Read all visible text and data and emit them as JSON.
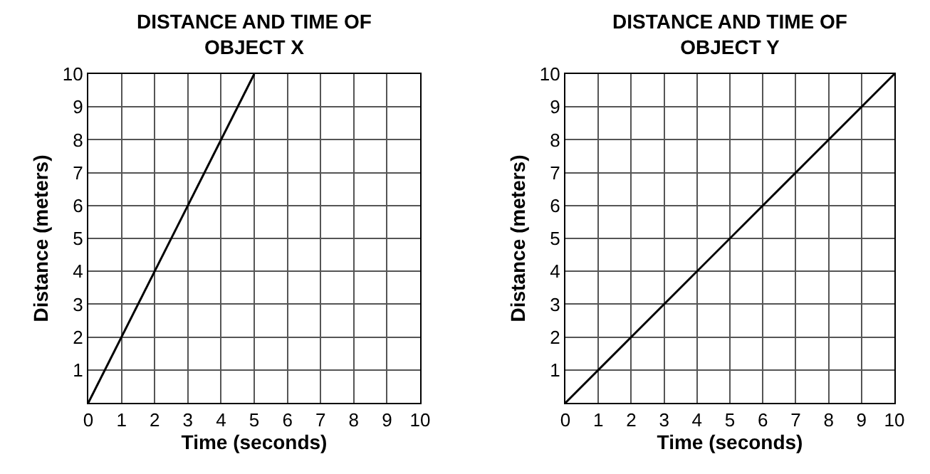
{
  "chart_data": [
    {
      "type": "line",
      "title": "DISTANCE AND TIME OF\nOBJECT X",
      "xlabel": "Time (seconds)",
      "ylabel": "Distance (meters)",
      "x": [
        0,
        5
      ],
      "series": [
        {
          "color": "#000000",
          "values": [
            0,
            10
          ]
        }
      ],
      "xlim": [
        0,
        10
      ],
      "ylim": [
        0,
        10
      ],
      "xticks": [
        0,
        1,
        2,
        3,
        4,
        5,
        6,
        7,
        8,
        9,
        10
      ],
      "yticks": [
        {
          "value": 0,
          "label": null
        },
        1,
        2,
        3,
        4,
        5,
        6,
        7,
        8,
        9,
        10
      ],
      "grid": true
    },
    {
      "type": "line",
      "title": "DISTANCE AND TIME OF\nOBJECT Y",
      "xlabel": "Time (seconds)",
      "ylabel": "Distance (meters)",
      "x": [
        0,
        10
      ],
      "series": [
        {
          "color": "#000000",
          "values": [
            0,
            10
          ]
        }
      ],
      "xlim": [
        0,
        10
      ],
      "ylim": [
        0,
        10
      ],
      "xticks": [
        0,
        1,
        2,
        3,
        4,
        5,
        6,
        7,
        8,
        9,
        10
      ],
      "yticks": [
        {
          "value": 0,
          "label": null
        },
        1,
        2,
        3,
        4,
        5,
        6,
        7,
        8,
        9,
        10
      ],
      "grid": true
    }
  ]
}
